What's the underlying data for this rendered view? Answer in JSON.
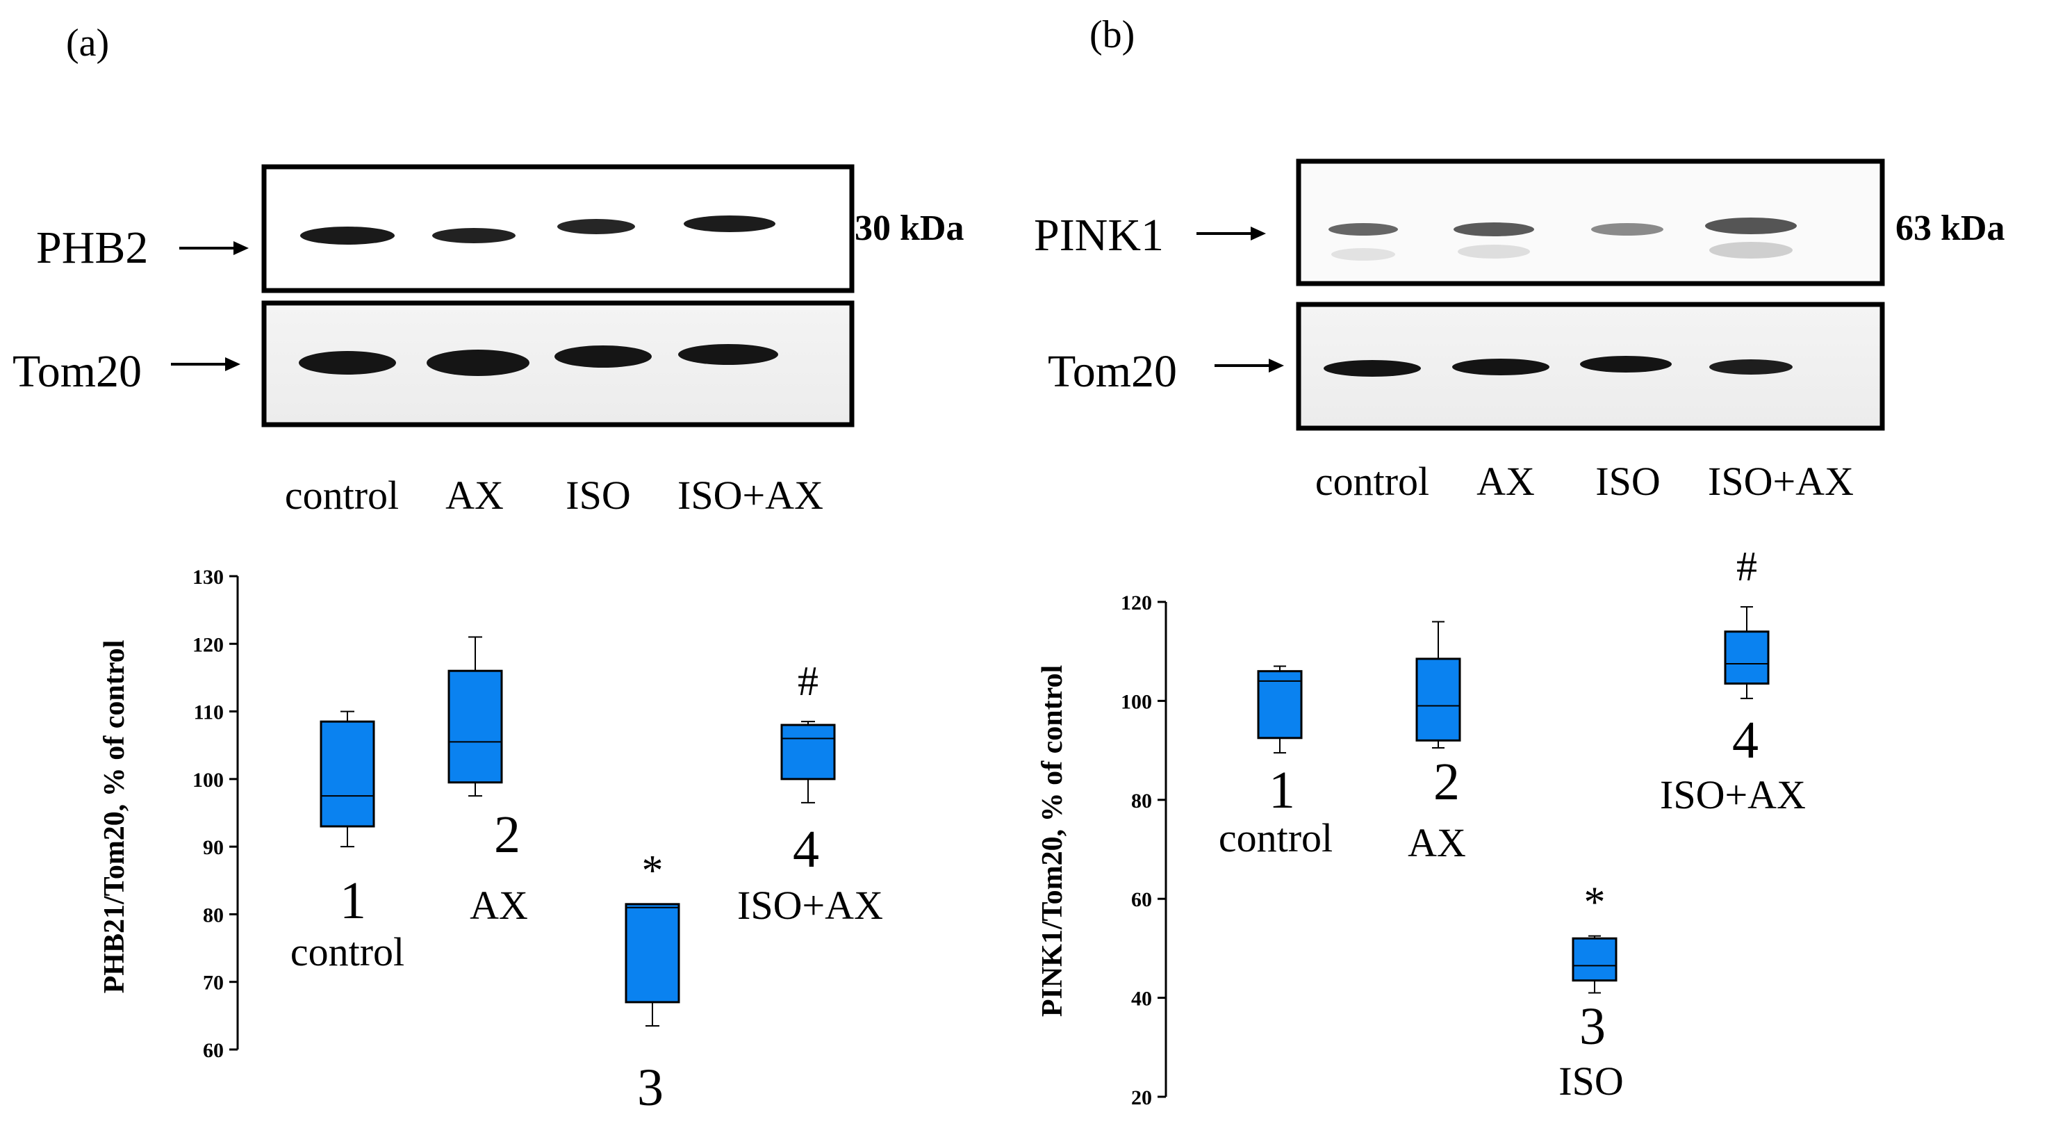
{
  "panels": [
    {
      "letter": "(a)",
      "blot": {
        "target_label": "PHB2",
        "loading_label": "Tom20",
        "size_label": "30 kDa",
        "lanes": [
          "control",
          "AX",
          "ISO",
          "ISO+AX"
        ]
      }
    },
    {
      "letter": "(b)",
      "blot": {
        "target_label": "PINK1",
        "loading_label": "Tom20",
        "size_label": "63 kDa",
        "lanes": [
          "control",
          "AX",
          "ISO",
          "ISO+AX"
        ]
      }
    }
  ],
  "chart_data": [
    {
      "type": "box",
      "ylabel": "PHB21/Tom20, % of control",
      "ylim": [
        60,
        130
      ],
      "yticks": [
        60,
        70,
        80,
        90,
        100,
        110,
        120,
        130
      ],
      "groups": [
        {
          "number": "1",
          "name": "control",
          "min": 90,
          "q1": 93,
          "median": 97.5,
          "q3": 108.5,
          "max": 110,
          "mark": ""
        },
        {
          "number": "2",
          "name": "AX",
          "min": 97.5,
          "q1": 99.5,
          "median": 105.5,
          "q3": 116,
          "max": 121,
          "mark": ""
        },
        {
          "number": "3",
          "name": "",
          "min": 63.5,
          "q1": 67,
          "median": 81,
          "q3": 81.5,
          "max": 81.5,
          "mark": "*"
        },
        {
          "number": "4",
          "name": "ISO+AX",
          "min": 96.5,
          "q1": 100,
          "median": 106,
          "q3": 108,
          "max": 108.5,
          "mark": "#"
        }
      ]
    },
    {
      "type": "box",
      "ylabel": "PINK1/Tom20, % of control",
      "ylim": [
        20,
        120
      ],
      "yticks": [
        20,
        40,
        60,
        80,
        100,
        120
      ],
      "groups": [
        {
          "number": "1",
          "name": "control",
          "min": 89.5,
          "q1": 92.5,
          "median": 104,
          "q3": 106,
          "max": 107,
          "mark": ""
        },
        {
          "number": "2",
          "name": "AX",
          "min": 90.5,
          "q1": 92,
          "median": 99,
          "q3": 108.5,
          "max": 116,
          "mark": ""
        },
        {
          "number": "3",
          "name": "ISO",
          "min": 41,
          "q1": 43.5,
          "median": 46.5,
          "q3": 52,
          "max": 52.5,
          "mark": "*"
        },
        {
          "number": "4",
          "name": "ISO+AX",
          "min": 100.5,
          "q1": 103.5,
          "median": 107.5,
          "q3": 114,
          "max": 119,
          "mark": "#"
        }
      ]
    }
  ]
}
